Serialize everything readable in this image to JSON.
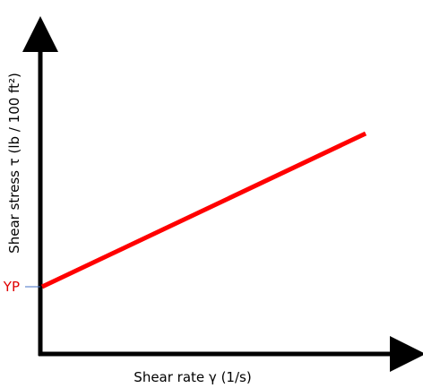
{
  "axes": {
    "x_label": "Shear rate γ (1/s)",
    "y_label": "Shear stress τ (lb / 100 ft²)"
  },
  "annotations": {
    "yield_point": "YP"
  }
}
